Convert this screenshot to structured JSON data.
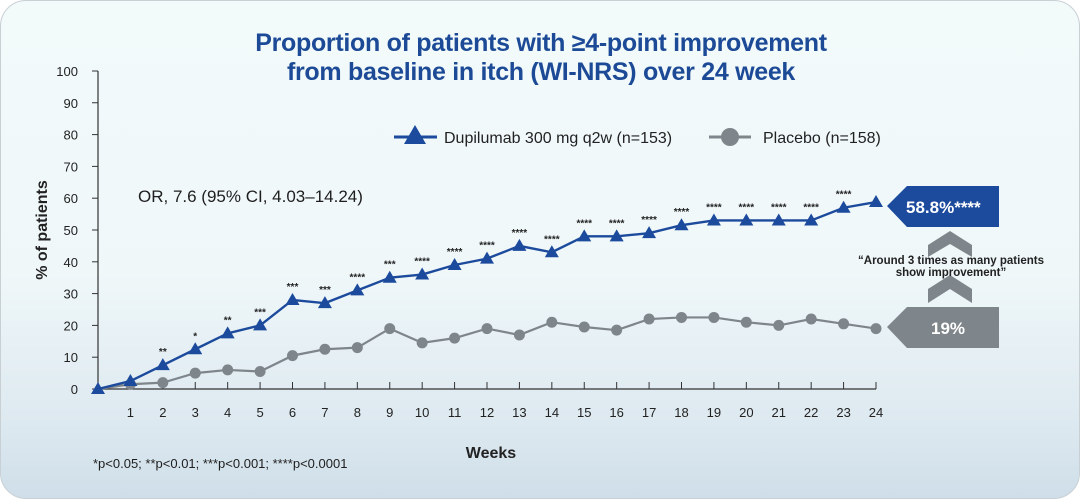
{
  "chart_data": {
    "type": "line",
    "title": "Proportion of patients with ≥4-point improvement from baseline in itch (WI-NRS) over 24 week",
    "title_lines": [
      "Proportion of patients with ≥4-point improvement",
      "from baseline in itch (WI-NRS) over 24 week"
    ],
    "xlabel": "Weeks",
    "ylabel": "% of patients",
    "xlim": [
      0,
      24
    ],
    "ylim": [
      0,
      100
    ],
    "x": [
      0,
      1,
      2,
      3,
      4,
      5,
      6,
      7,
      8,
      9,
      10,
      11,
      12,
      13,
      14,
      15,
      16,
      17,
      18,
      19,
      20,
      21,
      22,
      23,
      24
    ],
    "x_tick_labels": [
      "1",
      "2",
      "3",
      "4",
      "5",
      "6",
      "7",
      "8",
      "9",
      "10",
      "11",
      "12",
      "13",
      "14",
      "15",
      "16",
      "17",
      "18",
      "19",
      "20",
      "21",
      "22",
      "23",
      "24"
    ],
    "y_ticks": [
      0,
      10,
      20,
      30,
      40,
      50,
      60,
      70,
      80,
      90,
      100
    ],
    "grid": false,
    "legend_position": "top-right",
    "series": [
      {
        "name": "Dupilumab 300 mg q2w (n=153)",
        "marker": "triangle",
        "color": "#1c4a9c",
        "values": [
          0,
          2.5,
          7.5,
          12.5,
          17.5,
          20,
          28,
          27,
          31,
          35,
          36,
          39,
          41,
          45,
          43,
          48,
          48,
          49,
          51.5,
          53,
          53,
          53,
          53,
          57,
          58.8
        ],
        "significance": [
          "",
          "",
          "**",
          "*",
          "**",
          "***",
          "***",
          "***",
          "****",
          "***",
          "****",
          "****",
          "****",
          "****",
          "****",
          "****",
          "****",
          "****",
          "****",
          "****",
          "****",
          "****",
          "****",
          "****",
          ""
        ]
      },
      {
        "name": "Placebo (n=158)",
        "marker": "circle",
        "color": "#7f868b",
        "values": [
          0,
          1.5,
          2,
          5,
          6,
          5.5,
          10.5,
          12.5,
          13,
          19,
          14.5,
          16,
          19,
          17,
          21,
          19.5,
          18.5,
          22,
          22.5,
          22.5,
          21,
          20,
          22,
          20.5,
          19
        ]
      }
    ],
    "annotations": {
      "odds_ratio": "OR, 7.6 (95% CI, 4.03–14.24)",
      "callout_dupilumab": "58.8%****",
      "callout_placebo": "19%",
      "quote_lines": [
        "“Around 3 times as many patients",
        "show improvement”"
      ],
      "footnote": "*p<0.05; **p<0.01; ***p<0.001; ****p<0.0001"
    }
  }
}
